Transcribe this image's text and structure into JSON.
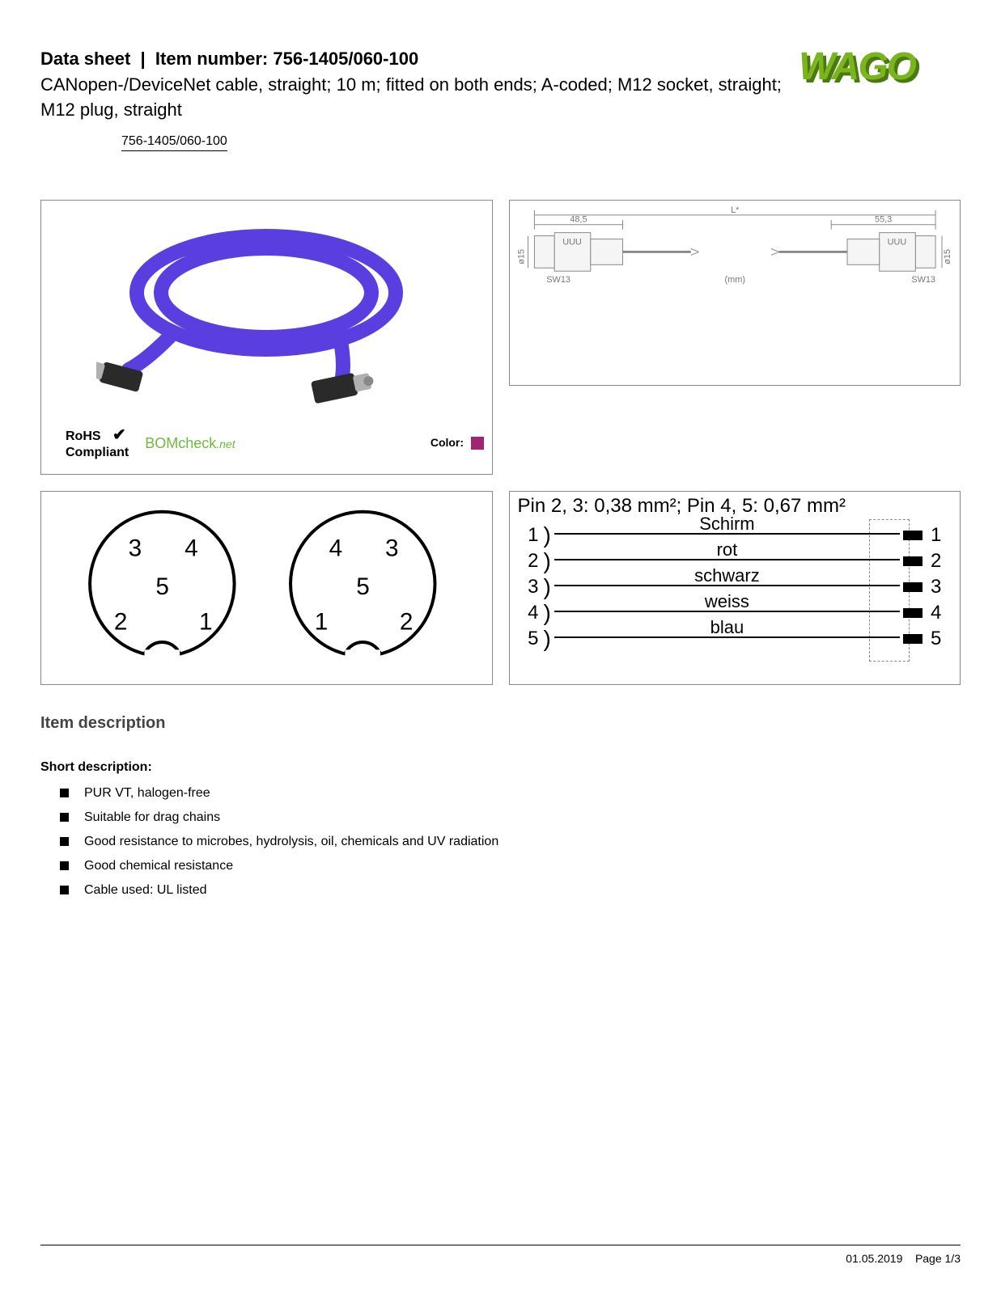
{
  "header": {
    "datasheet_label": "Data sheet",
    "item_label": "Item number:",
    "item_number": "756-1405/060-100",
    "subtitle": "CANopen-/DeviceNet cable, straight; 10 m; fitted on both ends; A-coded; M12 socket, straight; M12 plug, straight",
    "item_under": "756-1405/060-100"
  },
  "logo": {
    "text": "WAGO",
    "fill": "#7ab51d",
    "shadow": "#4a7a0f"
  },
  "panel1": {
    "cable_color": "#5b3ee0",
    "connector_color": "#2a2a2a",
    "metal_color": "#b0b0b0",
    "rohs_line1": "RoHS",
    "rohs_line2": "Compliant",
    "check": "✔",
    "bomcheck_main": "BOMcheck",
    "bomcheck_suffix": ".net",
    "color_label": "Color:",
    "color_swatch": "#a0266f"
  },
  "panel2": {
    "dim_left": "48,5",
    "dim_right": "55,3",
    "dim_total": "L*",
    "h_label_l": "ø15",
    "h_label_r": "ø15",
    "sw_l": "SW13",
    "sw_r": "SW13",
    "unit": "(mm)",
    "line_color": "#888",
    "body_fill": "#eee"
  },
  "panel3": {
    "left_pins": {
      "tl": "3",
      "tr": "4",
      "c": "5",
      "bl": "2",
      "br": "1"
    },
    "right_pins": {
      "tl": "4",
      "tr": "3",
      "c": "5",
      "bl": "1",
      "br": "2"
    },
    "font_size": 26
  },
  "panel4": {
    "title": "Pin 2, 3: 0,38 mm²; Pin 4, 5: 0,67 mm²",
    "wires": [
      {
        "n": "1",
        "label": "Schirm"
      },
      {
        "n": "2",
        "label": "rot"
      },
      {
        "n": "3",
        "label": "schwarz"
      },
      {
        "n": "4",
        "label": "weiss"
      },
      {
        "n": "5",
        "label": "blau"
      }
    ]
  },
  "desc": {
    "heading": "Item description",
    "short_heading": "Short description:",
    "bullets": [
      "PUR VT, halogen-free",
      "Suitable for drag chains",
      "Good resistance to microbes, hydrolysis, oil, chemicals and UV radiation",
      "Good chemical resistance",
      "Cable used: UL listed"
    ]
  },
  "footer": {
    "date": "01.05.2019",
    "page": "Page 1/3"
  }
}
